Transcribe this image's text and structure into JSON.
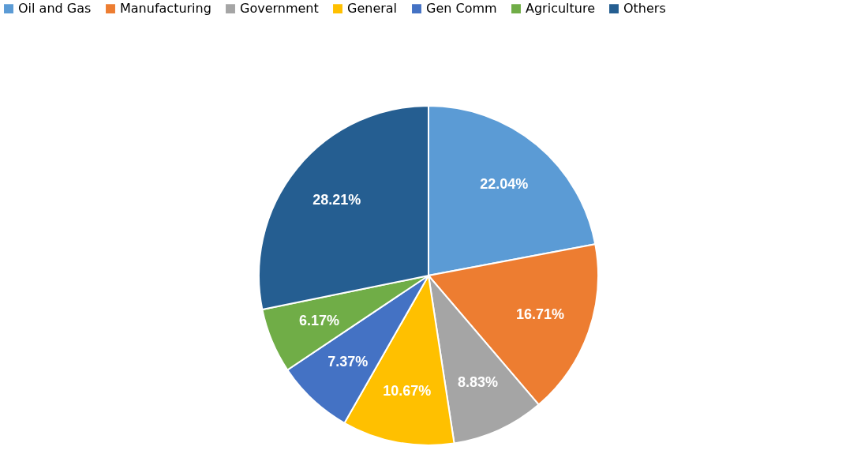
{
  "chart_data": {
    "type": "pie",
    "categories": [
      "Oil and Gas",
      "Manufacturing",
      "Government",
      "General",
      "Gen Comm",
      "Agriculture",
      "Others"
    ],
    "values": [
      22.04,
      16.71,
      8.83,
      10.67,
      7.37,
      6.17,
      28.21
    ],
    "colors": [
      "#5b9bd5",
      "#ed7d31",
      "#a5a5a5",
      "#ffc000",
      "#4472c4",
      "#70ad47",
      "#255e91"
    ],
    "value_labels": [
      "22.04%",
      "16.71%",
      "8.83%",
      "10.67%",
      "7.37%",
      "6.17%",
      "28.21%"
    ],
    "legend": "top"
  }
}
